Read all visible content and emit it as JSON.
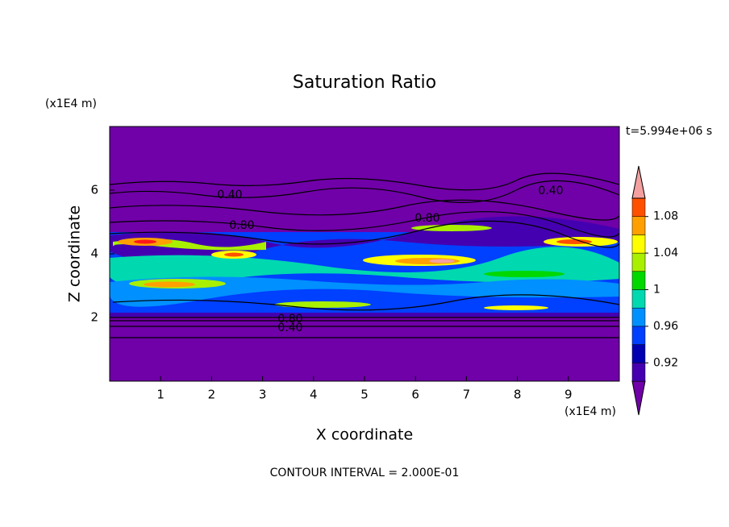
{
  "chart_data": {
    "type": "contour",
    "title": "Saturation Ratio",
    "x_label": "X coordinate",
    "y_label": "Z coordinate",
    "x_unit": "(x1E4 m)",
    "y_unit": "(x1E4 m)",
    "time_label": "t=5.994e+06 s",
    "footer": "CONTOUR INTERVAL = 2.000E-01",
    "xlim": [
      0,
      10
    ],
    "ylim": [
      0,
      8
    ],
    "xticks": [
      1,
      2,
      3,
      4,
      5,
      6,
      7,
      8,
      9
    ],
    "yticks": [
      2,
      4,
      6
    ],
    "contour_labels": [
      "0.40",
      "0.40",
      "0.80",
      "0.80",
      "0.80",
      "0.40"
    ],
    "colorbar": {
      "levels": [
        0.9,
        0.92,
        0.94,
        0.96,
        0.98,
        1,
        1.02,
        1.04,
        1.06,
        1.08,
        1.1
      ],
      "colors": [
        "#7000a8",
        "#4400b0",
        "#0000b0",
        "#0040ff",
        "#0090ff",
        "#00d8b0",
        "#00d800",
        "#a8f000",
        "#ffff00",
        "#ffa000",
        "#ff5000",
        "#ff1818",
        "#f4a0a0"
      ],
      "ticks": [
        0.92,
        0.96,
        1,
        1.04,
        1.08
      ]
    }
  }
}
